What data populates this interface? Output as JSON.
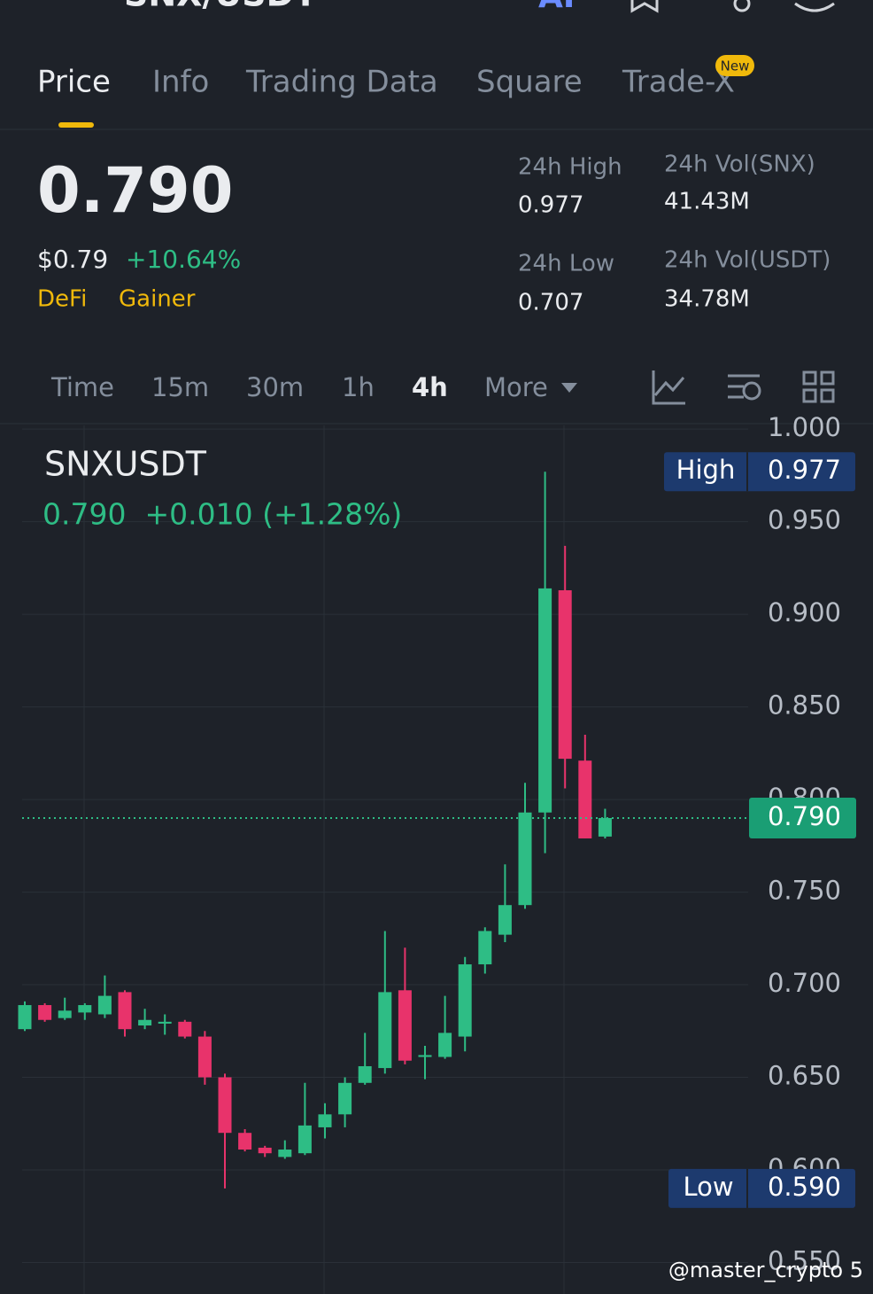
{
  "header": {
    "pair": "SNX/USDT",
    "ai": "AI"
  },
  "tabs": {
    "items": [
      "Price",
      "Info",
      "Trading Data",
      "Square",
      "Trade-X"
    ],
    "badge": "New"
  },
  "ticker": {
    "price": "0.790",
    "usd": "$0.79",
    "change": "+10.64%",
    "tags": [
      "DeFi",
      "Gainer"
    ],
    "stats": [
      {
        "label": "24h High",
        "value": "0.977"
      },
      {
        "label": "24h Vol(SNX)",
        "value": "41.43M"
      },
      {
        "label": "24h Low",
        "value": "0.707"
      },
      {
        "label": "24h Vol(USDT)",
        "value": "34.78M"
      }
    ]
  },
  "intervals": [
    "Time",
    "15m",
    "30m",
    "1h",
    "4h",
    "More"
  ],
  "watermark": "@master_crypto 5",
  "chart_data": {
    "type": "candlestick",
    "title": "SNXUSDT",
    "subtitle": "0.790  +0.010 (+1.28%)",
    "ylim": [
      0.533,
      1.002
    ],
    "yticks": [
      {
        "value": 1.0,
        "label": "1.000"
      },
      {
        "value": 0.95,
        "label": "0.950"
      },
      {
        "value": 0.9,
        "label": "0.900"
      },
      {
        "value": 0.85,
        "label": "0.850"
      },
      {
        "value": 0.8,
        "label": "0.800"
      },
      {
        "value": 0.75,
        "label": "0.750"
      },
      {
        "value": 0.7,
        "label": "0.700"
      },
      {
        "value": 0.65,
        "label": "0.650"
      },
      {
        "value": 0.6,
        "label": "0.600"
      },
      {
        "value": 0.55,
        "label": "0.550"
      }
    ],
    "grid": true,
    "up_color": "#2ebd85",
    "down_color": "#e8336b",
    "open": [
      0.676,
      0.689,
      0.682,
      0.685,
      0.684,
      0.696,
      0.678,
      0.679,
      0.68,
      0.672,
      0.65,
      0.62,
      0.612,
      0.607,
      0.609,
      0.623,
      0.63,
      0.647,
      0.655,
      0.697,
      0.661,
      0.661,
      0.672,
      0.711,
      0.727,
      0.743,
      0.793,
      0.913,
      0.821,
      0.78
    ],
    "high": [
      0.691,
      0.69,
      0.693,
      0.69,
      0.705,
      0.697,
      0.687,
      0.684,
      0.681,
      0.675,
      0.652,
      0.622,
      0.613,
      0.616,
      0.647,
      0.636,
      0.65,
      0.674,
      0.729,
      0.72,
      0.667,
      0.694,
      0.715,
      0.731,
      0.765,
      0.809,
      0.977,
      0.937,
      0.835,
      0.795
    ],
    "low": [
      0.675,
      0.68,
      0.681,
      0.681,
      0.682,
      0.672,
      0.676,
      0.673,
      0.671,
      0.646,
      0.59,
      0.61,
      0.607,
      0.606,
      0.608,
      0.617,
      0.623,
      0.646,
      0.652,
      0.657,
      0.649,
      0.66,
      0.664,
      0.706,
      0.723,
      0.741,
      0.771,
      0.806,
      0.779,
      0.779
    ],
    "close": [
      0.689,
      0.681,
      0.686,
      0.689,
      0.694,
      0.676,
      0.681,
      0.68,
      0.672,
      0.65,
      0.62,
      0.611,
      0.609,
      0.611,
      0.624,
      0.63,
      0.647,
      0.656,
      0.696,
      0.659,
      0.662,
      0.674,
      0.711,
      0.729,
      0.743,
      0.793,
      0.914,
      0.822,
      0.779,
      0.79
    ],
    "high_badge": {
      "label": "High",
      "value": 0.977
    },
    "low_badge": {
      "label": "Low",
      "value": {
        "value": 0.59,
        "label": "0.590"
      }
    },
    "last_price": {
      "value": 0.79,
      "label": "0.790"
    }
  }
}
